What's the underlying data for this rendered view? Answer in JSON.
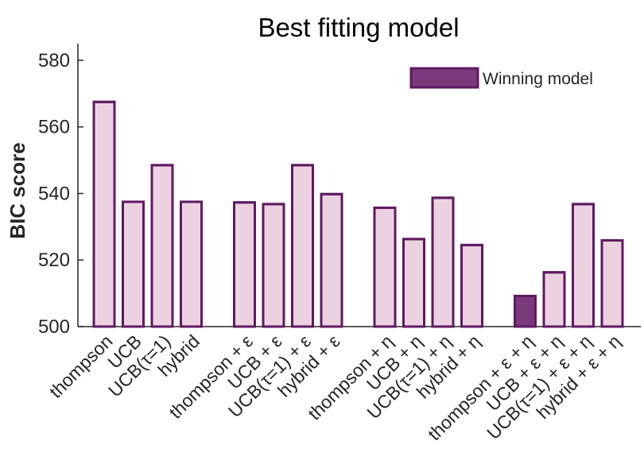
{
  "chart_data": {
    "type": "bar",
    "title": "Best fitting model",
    "xlabel": "",
    "ylabel": "BIC score",
    "ylim": [
      500,
      585
    ],
    "yticks": [
      "500",
      "520",
      "540",
      "560",
      "580"
    ],
    "groups": [
      {
        "categories": [
          "thompson",
          "UCB",
          "UCB(τ=1)",
          "hybrid"
        ],
        "values": [
          567.5,
          537.5,
          548.5,
          537.5
        ]
      },
      {
        "categories": [
          "thompson + ε",
          "UCB + ε",
          "UCB(τ=1) + ε",
          "hybrid + ε"
        ],
        "values": [
          537.3,
          536.8,
          548.5,
          539.8
        ]
      },
      {
        "categories": [
          "thompson + η",
          "UCB + η",
          "UCB(τ=1) + η",
          "hybrid + η"
        ],
        "values": [
          535.7,
          526.3,
          538.7,
          524.5
        ]
      },
      {
        "categories": [
          "thompson + ε + η",
          "UCB + ε + η",
          "UCB(τ=1) + ε + η",
          "hybrid + ε + η"
        ],
        "values": [
          509.2,
          516.3,
          536.8,
          525.9
        ]
      }
    ],
    "winning_index": 12,
    "legend": {
      "label": "Winning model",
      "position": "top-right"
    },
    "colors": {
      "bar_fill": "#ecd2e0",
      "bar_edge": "#5f1a62",
      "winner_fill": "#7a3a7c",
      "axis": "#262626"
    },
    "grid": false
  }
}
